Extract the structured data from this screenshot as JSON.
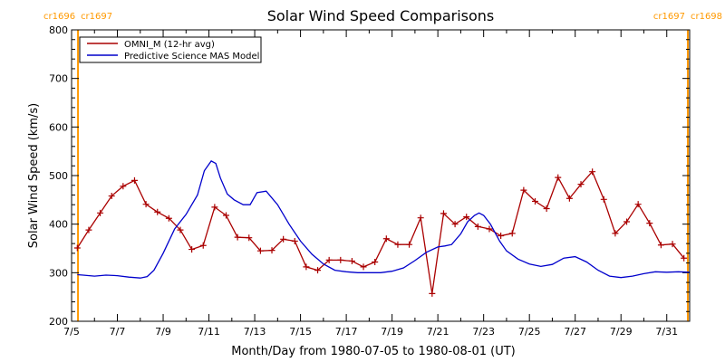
{
  "chart_data": {
    "type": "line",
    "title": "Solar Wind Speed Comparisons",
    "xlabel": "Month/Day from 1980-07-05 to 1980-08-01 (UT)",
    "ylabel": "Solar Wind Speed (km/s)",
    "xlim": [
      0,
      27
    ],
    "ylim": [
      200,
      800
    ],
    "y_ticks": [
      200,
      300,
      400,
      500,
      600,
      700,
      800
    ],
    "x_ticks": [
      {
        "day": 0,
        "label": "7/5"
      },
      {
        "day": 2,
        "label": "7/7"
      },
      {
        "day": 4,
        "label": "7/9"
      },
      {
        "day": 6,
        "label": "7/11"
      },
      {
        "day": 8,
        "label": "7/13"
      },
      {
        "day": 10,
        "label": "7/15"
      },
      {
        "day": 12,
        "label": "7/17"
      },
      {
        "day": 14,
        "label": "7/19"
      },
      {
        "day": 16,
        "label": "7/21"
      },
      {
        "day": 18,
        "label": "7/23"
      },
      {
        "day": 20,
        "label": "7/25"
      },
      {
        "day": 22,
        "label": "7/27"
      },
      {
        "day": 24,
        "label": "7/29"
      },
      {
        "day": 26,
        "label": "7/31"
      }
    ],
    "legend_position": "top-left",
    "carrington_markers": [
      {
        "day": 0.28,
        "left_label": "cr1696",
        "right_label": "cr1697"
      },
      {
        "day": 26.92,
        "left_label": "cr1697",
        "right_label": "cr1698"
      }
    ],
    "series": [
      {
        "name": "OMNI_M (12-hr avg)",
        "color": "#aa0000",
        "markers": true,
        "x": [
          0.25,
          0.75,
          1.25,
          1.75,
          2.25,
          2.75,
          3.25,
          3.75,
          4.25,
          4.75,
          5.25,
          5.75,
          6.25,
          6.75,
          7.25,
          7.75,
          8.25,
          8.75,
          9.25,
          9.75,
          10.25,
          10.75,
          11.25,
          11.75,
          12.25,
          12.75,
          13.25,
          13.75,
          14.25,
          14.75,
          15.25,
          15.75,
          16.25,
          16.75,
          17.25,
          17.75,
          18.25,
          18.75,
          19.25,
          19.75,
          20.25,
          20.75,
          21.25,
          21.75,
          22.25,
          22.75,
          23.25,
          23.75,
          24.25,
          24.75,
          25.25,
          25.75,
          26.25,
          26.75
        ],
        "y": [
          351,
          388,
          423,
          458,
          478,
          490,
          441,
          425,
          412,
          388,
          348,
          356,
          435,
          418,
          373,
          372,
          345,
          346,
          369,
          365,
          312,
          305,
          326,
          326,
          324,
          312,
          322,
          370,
          358,
          358,
          413,
          257,
          422,
          400,
          415,
          395,
          390,
          376,
          381,
          470,
          447,
          432,
          496,
          453,
          482,
          508,
          451,
          381,
          405,
          441,
          402,
          357,
          359,
          330
        ]
      },
      {
        "name": "Predictive Science MAS Model",
        "color": "#0000cc",
        "markers": false,
        "x": [
          0.25,
          0.5,
          1.0,
          1.5,
          2.0,
          2.5,
          3.0,
          3.3,
          3.6,
          4.0,
          4.5,
          5.0,
          5.5,
          5.8,
          6.1,
          6.3,
          6.5,
          6.8,
          7.1,
          7.5,
          7.8,
          8.1,
          8.5,
          9.0,
          9.5,
          10.0,
          10.5,
          11.0,
          11.5,
          12.0,
          12.5,
          13.0,
          13.5,
          14.0,
          14.5,
          15.0,
          15.5,
          16.0,
          16.3,
          16.6,
          17.0,
          17.3,
          17.6,
          17.8,
          18.0,
          18.3,
          18.7,
          19.0,
          19.5,
          20.0,
          20.5,
          21.0,
          21.5,
          22.0,
          22.5,
          23.0,
          23.5,
          24.0,
          24.5,
          25.0,
          25.5,
          26.0,
          26.5,
          27.0
        ],
        "y": [
          296,
          295,
          293,
          295,
          294,
          291,
          289,
          292,
          305,
          340,
          390,
          420,
          460,
          510,
          530,
          525,
          495,
          462,
          450,
          440,
          440,
          465,
          468,
          440,
          400,
          365,
          338,
          318,
          305,
          302,
          300,
          300,
          300,
          303,
          310,
          325,
          342,
          353,
          355,
          358,
          380,
          405,
          418,
          423,
          418,
          400,
          365,
          345,
          328,
          318,
          313,
          317,
          330,
          333,
          322,
          305,
          293,
          290,
          293,
          298,
          302,
          301,
          302,
          301
        ]
      }
    ]
  }
}
